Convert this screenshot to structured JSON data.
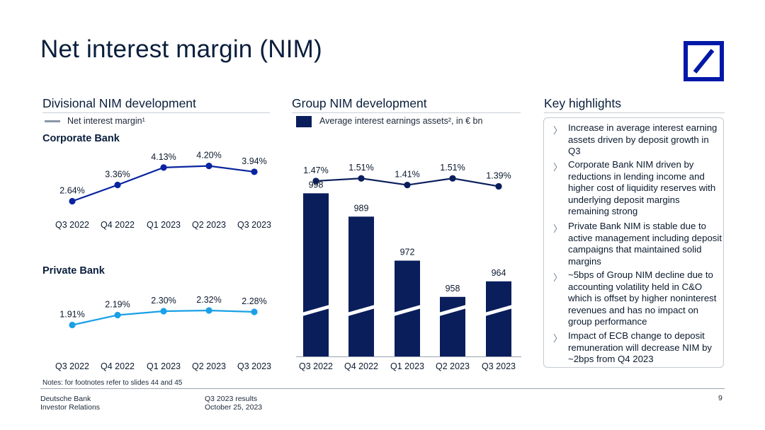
{
  "page": {
    "title": "Net interest margin (NIM)",
    "page_number": "9"
  },
  "left": {
    "section_title": "Divisional NIM development",
    "legend_label": "Net interest margin¹",
    "corporate_title": "Corporate Bank",
    "private_title": "Private Bank"
  },
  "middle": {
    "section_title": "Group NIM development",
    "legend_label": "Average interest earnings assets², in € bn"
  },
  "right": {
    "section_title": "Key highlights",
    "items": [
      "Increase in average interest earning assets driven by deposit growth in Q3",
      "Corporate Bank NIM driven by reductions in lending income and higher cost of liquidity reserves with underlying deposit margins remaining strong",
      "Private Bank NIM is stable due to active management including deposit campaigns that maintained solid margins",
      "~5bps of Group NIM decline due to accounting volatility held in C&O which is offset by higher noninterest revenues and has no impact on group performance",
      "Impact of ECB change to deposit remuneration will decrease NIM by ~2bps from Q4 2023"
    ]
  },
  "footer": {
    "notes": "Notes: for footnotes refer to slides 44 and 45",
    "company": "Deutsche Bank",
    "department": "Investor Relations",
    "report": "Q3 2023 results",
    "date": "October 25, 2023"
  },
  "colors": {
    "navy": "#0a1e5c",
    "corporate_line": "#0a24a0",
    "private_line": "#1aa0e6",
    "logo_blue": "#0018a8"
  },
  "chart_data": [
    {
      "type": "line",
      "name": "corporate-bank-nim",
      "title": "Corporate Bank",
      "categories": [
        "Q3 2022",
        "Q4 2022",
        "Q1 2023",
        "Q2 2023",
        "Q3 2023"
      ],
      "series": [
        {
          "name": "Net interest margin¹",
          "values": [
            2.64,
            3.36,
            4.13,
            4.2,
            3.94
          ],
          "labels": [
            "2.64%",
            "3.36%",
            "4.13%",
            "4.20%",
            "3.94%"
          ]
        }
      ],
      "ylim": [
        2.0,
        4.5
      ]
    },
    {
      "type": "line",
      "name": "private-bank-nim",
      "title": "Private Bank",
      "categories": [
        "Q3 2022",
        "Q4 2022",
        "Q1 2023",
        "Q2 2023",
        "Q3 2023"
      ],
      "series": [
        {
          "name": "Net interest margin¹",
          "values": [
            1.91,
            2.19,
            2.3,
            2.32,
            2.28
          ],
          "labels": [
            "1.91%",
            "2.19%",
            "2.30%",
            "2.32%",
            "2.28%"
          ]
        }
      ],
      "ylim": [
        1.5,
        2.6
      ]
    },
    {
      "type": "line",
      "name": "group-nim",
      "categories": [
        "Q3 2022",
        "Q4 2022",
        "Q1 2023",
        "Q2 2023",
        "Q3 2023"
      ],
      "series": [
        {
          "name": "Net interest margin¹",
          "values": [
            1.47,
            1.51,
            1.41,
            1.51,
            1.39
          ],
          "labels": [
            "1.47%",
            "1.51%",
            "1.41%",
            "1.51%",
            "1.39%"
          ]
        }
      ],
      "ylim": [
        1.0,
        1.8
      ]
    },
    {
      "type": "bar",
      "name": "average-interest-earning-assets",
      "categories": [
        "Q3 2022",
        "Q4 2022",
        "Q1 2023",
        "Q2 2023",
        "Q3 2023"
      ],
      "series": [
        {
          "name": "Average interest earnings assets², in € bn",
          "values": [
            998,
            989,
            972,
            958,
            964
          ]
        }
      ],
      "axis_break": true,
      "ylim": [
        935,
        1000
      ]
    }
  ]
}
